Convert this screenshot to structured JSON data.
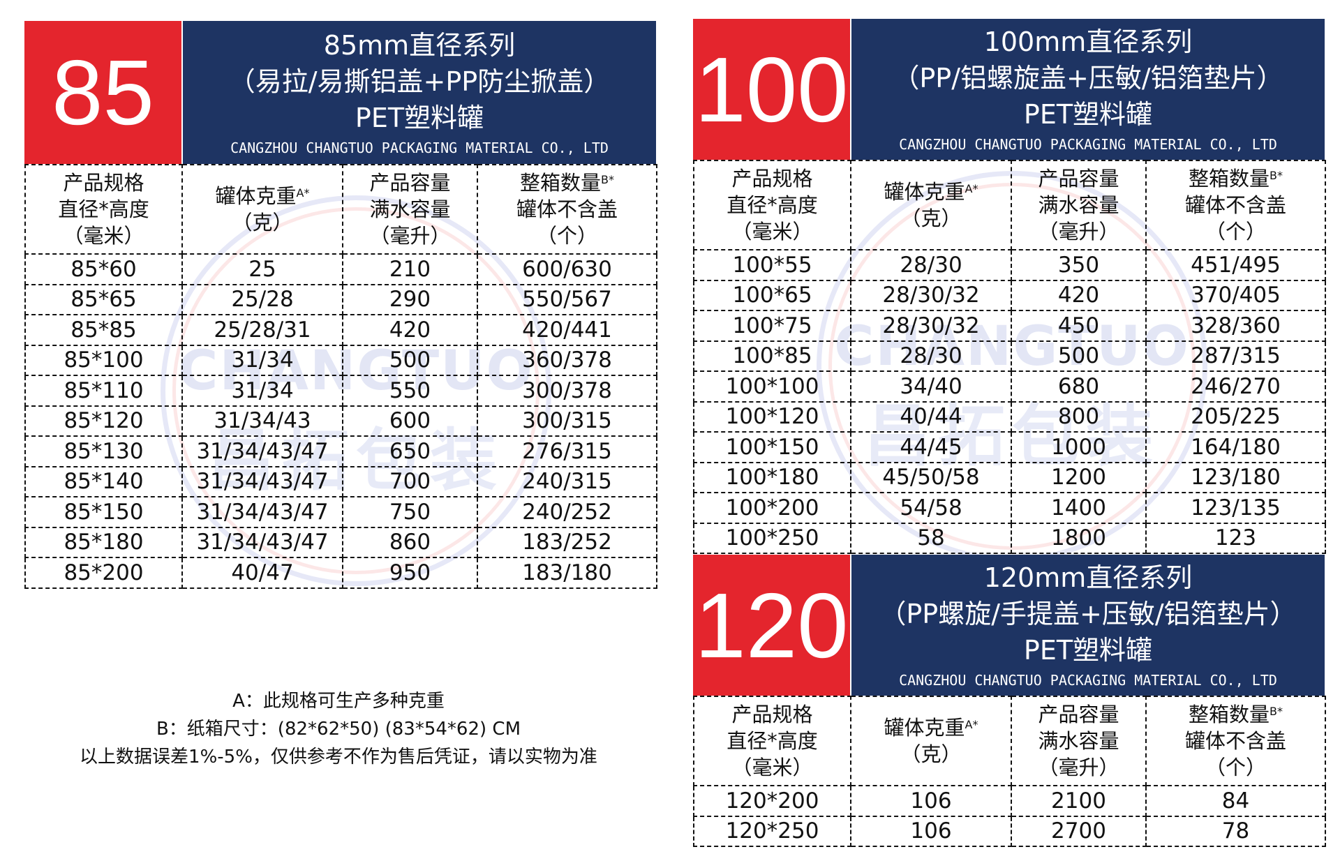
{
  "company": "CANGZHOU CHANGTUO PACKAGING MATERIAL CO., LTD",
  "watermark": {
    "en": "CHANGTUO",
    "cn": "昌拓包装"
  },
  "headers": {
    "spec": [
      "产品规格",
      "直径*高度",
      "（毫米）"
    ],
    "weight": [
      "罐体克重",
      "（克）"
    ],
    "weight_sup": "A*",
    "capacity": [
      "产品容量",
      "满水容量",
      "（毫升）"
    ],
    "box": [
      "整箱数量",
      "罐体不含盖",
      "（个）"
    ],
    "box_sup": "B*"
  },
  "series85": {
    "number": "85",
    "line1": "85mm直径系列",
    "line2": "（易拉/易撕铝盖+PP防尘掀盖）",
    "line3": "PET塑料罐",
    "rows": [
      [
        "85*60",
        "25",
        "210",
        "600/630"
      ],
      [
        "85*65",
        "25/28",
        "290",
        "550/567"
      ],
      [
        "85*85",
        "25/28/31",
        "420",
        "420/441"
      ],
      [
        "85*100",
        "31/34",
        "500",
        "360/378"
      ],
      [
        "85*110",
        "31/34",
        "550",
        "300/378"
      ],
      [
        "85*120",
        "31/34/43",
        "600",
        "300/315"
      ],
      [
        "85*130",
        "31/34/43/47",
        "650",
        "276/315"
      ],
      [
        "85*140",
        "31/34/43/47",
        "700",
        "240/315"
      ],
      [
        "85*150",
        "31/34/43/47",
        "750",
        "240/252"
      ],
      [
        "85*180",
        "31/34/43/47",
        "860",
        "183/252"
      ],
      [
        "85*200",
        "40/47",
        "950",
        "183/180"
      ]
    ]
  },
  "series100": {
    "number": "100",
    "line1": "100mm直径系列",
    "line2": "（PP/铝螺旋盖+压敏/铝箔垫片）",
    "line3": "PET塑料罐",
    "rows": [
      [
        "100*55",
        "28/30",
        "350",
        "451/495"
      ],
      [
        "100*65",
        "28/30/32",
        "420",
        "370/405"
      ],
      [
        "100*75",
        "28/30/32",
        "450",
        "328/360"
      ],
      [
        "100*85",
        "28/30",
        "500",
        "287/315"
      ],
      [
        "100*100",
        "34/40",
        "680",
        "246/270"
      ],
      [
        "100*120",
        "40/44",
        "800",
        "205/225"
      ],
      [
        "100*150",
        "44/45",
        "1000",
        "164/180"
      ],
      [
        "100*180",
        "45/50/58",
        "1200",
        "123/180"
      ],
      [
        "100*200",
        "54/58",
        "1400",
        "123/135"
      ],
      [
        "100*250",
        "58",
        "1800",
        "123"
      ]
    ]
  },
  "series120": {
    "number": "120",
    "line1": "120mm直径系列",
    "line2": "（PP螺旋/手提盖+压敏/铝箔垫片）",
    "line3": "PET塑料罐",
    "rows": [
      [
        "120*200",
        "106",
        "2100",
        "84"
      ],
      [
        "120*250",
        "106",
        "2700",
        "78"
      ]
    ]
  },
  "notes": [
    "A：此规格可生产多种克重",
    "B：纸箱尺寸：(82*62*50)  (83*54*62) CM",
    "以上数据误差1%-5%，仅供参考不作为售后凭证，请以实物为准"
  ]
}
